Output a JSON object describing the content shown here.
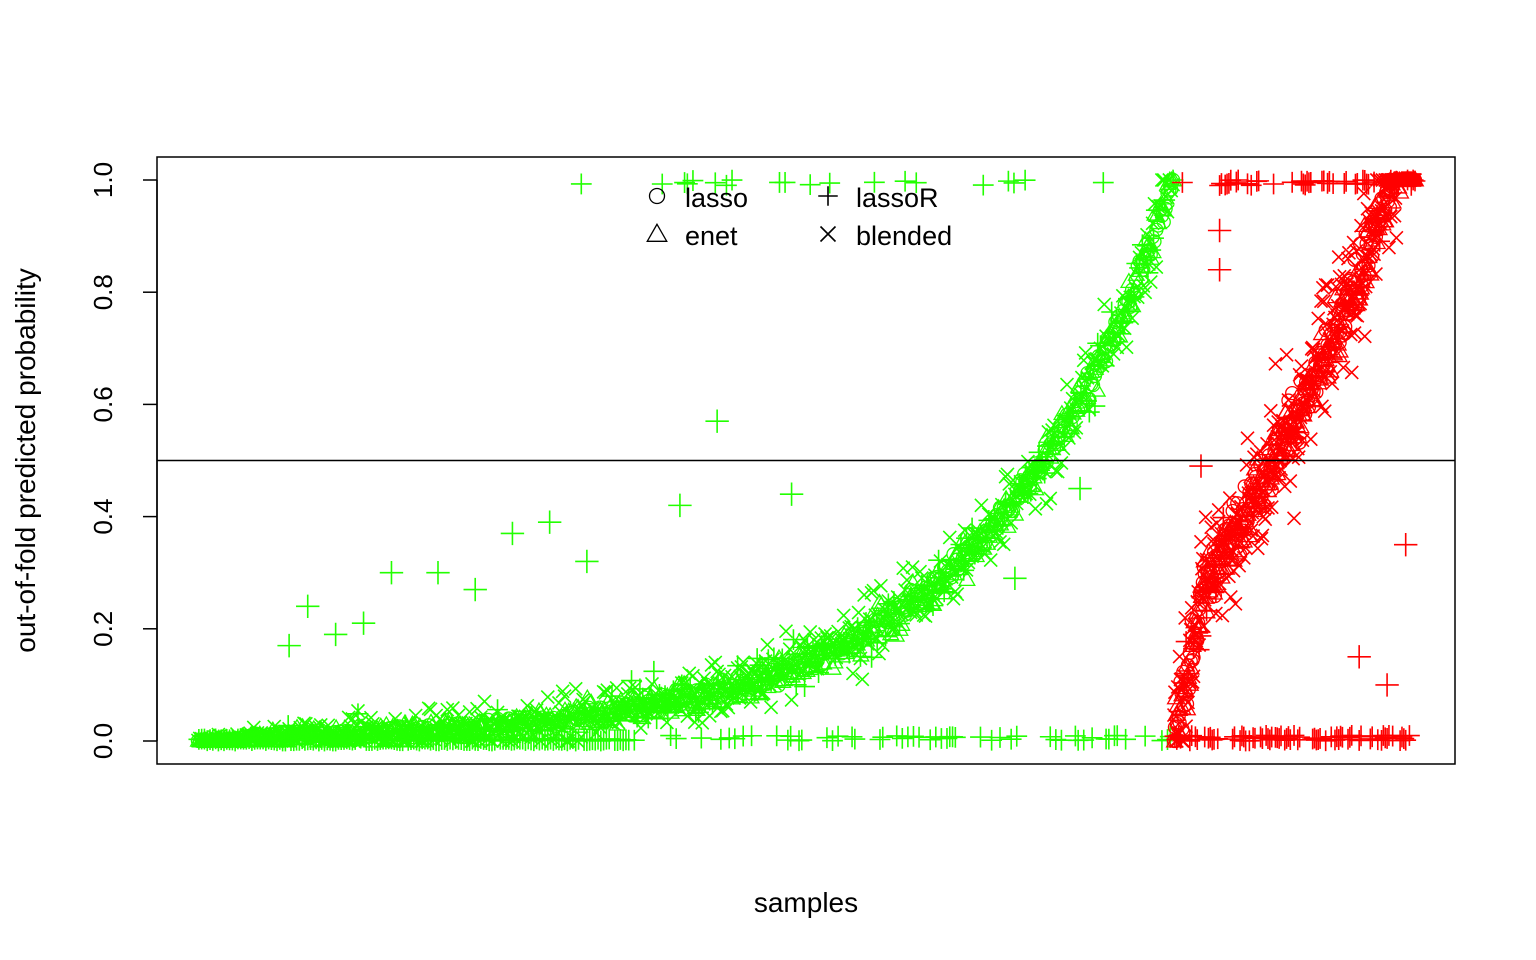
{
  "chart_data": {
    "type": "scatter",
    "title": "",
    "xlabel": "samples",
    "ylabel": "out-of-fold predicted probability",
    "ylim": [
      0,
      1
    ],
    "yticks": [
      "0.0",
      "0.2",
      "0.4",
      "0.6",
      "0.8",
      "1.0"
    ],
    "ytick_values": [
      0,
      0.2,
      0.4,
      0.6,
      0.8,
      1.0
    ],
    "xticks": [],
    "grid": false,
    "reference_line": {
      "y": 0.5
    },
    "colors": {
      "class_a": "#22ff00",
      "class_b": "#ff0000",
      "axis": "#000000"
    },
    "legend": {
      "placement": "top-center",
      "entries": [
        {
          "label": "lasso",
          "marker": "circle"
        },
        {
          "label": "lassoR",
          "marker": "plus"
        },
        {
          "label": "enet",
          "marker": "triangle"
        },
        {
          "label": "blended",
          "marker": "cross"
        }
      ]
    },
    "groups": [
      {
        "color": "#22ff00",
        "x_range": [
          1,
          1050
        ],
        "pattern": "increasing sigmoid from 0.0 to 1.0",
        "n": 1050
      },
      {
        "color": "#ff0000",
        "x_range": [
          1051,
          1310
        ],
        "pattern": "increasing from 0.0 to 1.0",
        "n": 260
      }
    ],
    "highlights": [
      {
        "series": "lassoR",
        "color": "#22ff00",
        "points": [
          [
            100,
            0.17
          ],
          [
            120,
            0.24
          ],
          [
            150,
            0.19
          ],
          [
            180,
            0.21
          ],
          [
            210,
            0.3
          ],
          [
            260,
            0.3
          ],
          [
            300,
            0.27
          ],
          [
            340,
            0.37
          ],
          [
            380,
            0.39
          ],
          [
            420,
            0.32
          ],
          [
            520,
            0.42
          ],
          [
            560,
            0.57
          ],
          [
            640,
            0.44
          ],
          [
            880,
            0.29
          ],
          [
            950,
            0.45
          ]
        ]
      },
      {
        "series": "lassoR",
        "color": "#ff0000",
        "points": [
          [
            1080,
            0.49
          ],
          [
            1100,
            0.91
          ],
          [
            1100,
            0.84
          ],
          [
            1250,
            0.15
          ],
          [
            1280,
            0.1
          ],
          [
            1300,
            0.35
          ]
        ]
      }
    ]
  }
}
